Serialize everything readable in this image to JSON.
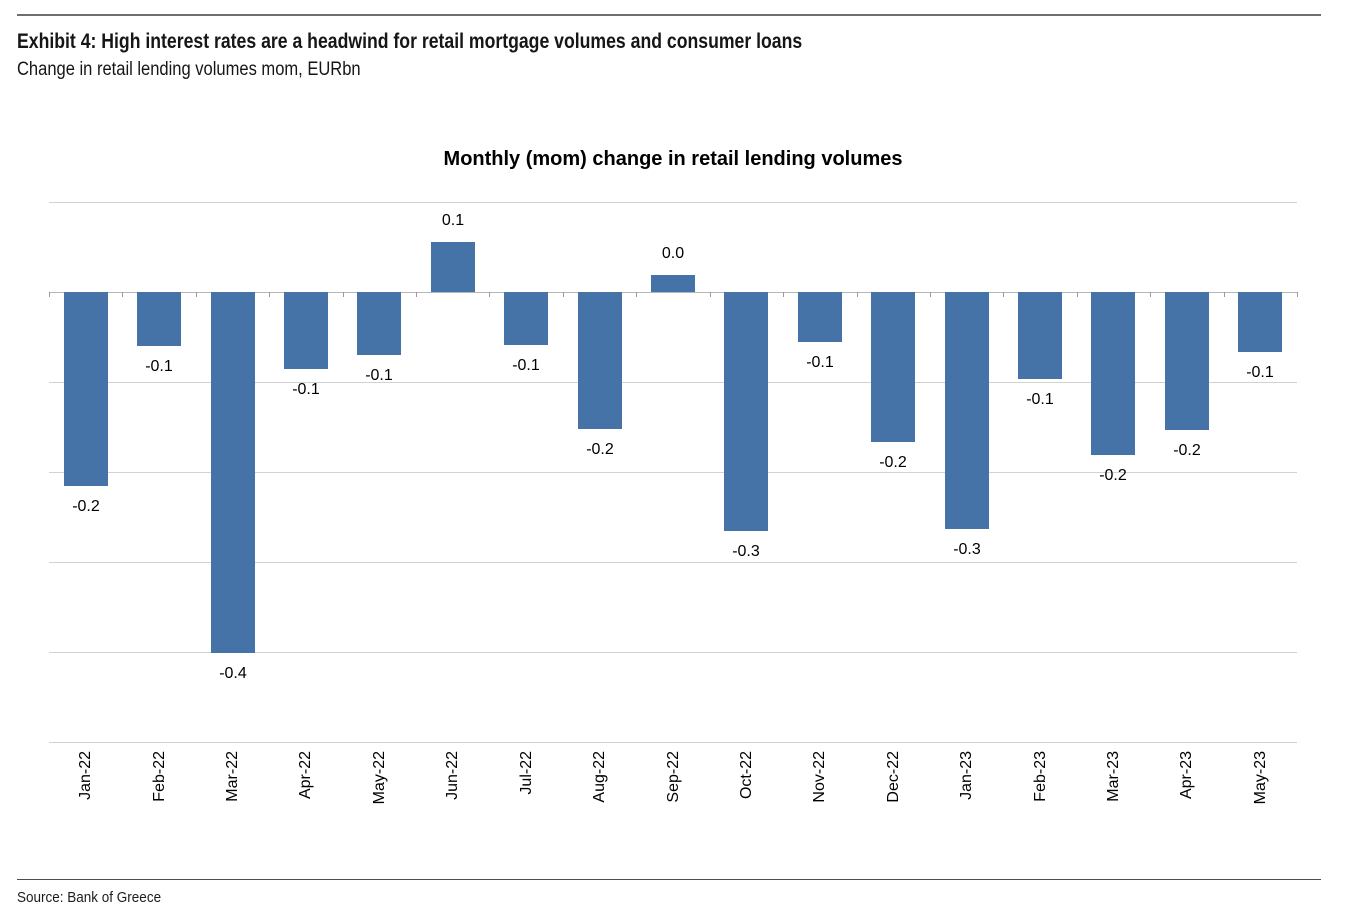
{
  "header": {
    "exhibit_title": "Exhibit 4: High interest rates are a headwind for retail mortgage volumes and consumer loans",
    "subtitle": "Change in retail lending volumes mom, EURbn"
  },
  "footer": {
    "source": "Source: Bank of Greece"
  },
  "chart_data": {
    "type": "bar",
    "title": "Monthly (mom) change in retail lending volumes",
    "categories": [
      "Jan-22",
      "Feb-22",
      "Mar-22",
      "Apr-22",
      "May-22",
      "Jun-22",
      "Jul-22",
      "Aug-22",
      "Sep-22",
      "Oct-22",
      "Nov-22",
      "Dec-22",
      "Jan-23",
      "Feb-23",
      "Mar-23",
      "Apr-23",
      "May-23"
    ],
    "values": [
      -0.215,
      -0.06,
      -0.401,
      -0.085,
      -0.07,
      0.056,
      -0.059,
      -0.152,
      0.019,
      -0.266,
      -0.056,
      -0.167,
      -0.263,
      -0.097,
      -0.181,
      -0.153,
      -0.067
    ],
    "point_labels": [
      "-0.2",
      "-0.1",
      "-0.4",
      "-0.1",
      "-0.1",
      "0.1",
      "-0.1",
      "-0.2",
      "0.0",
      "-0.3",
      "-0.1",
      "-0.2",
      "-0.3",
      "-0.1",
      "-0.2",
      "-0.2",
      "-0.1"
    ],
    "xlabel": "",
    "ylabel": "",
    "ylim": [
      -0.5,
      0.1
    ],
    "grid_step": 0.1,
    "y_axis_tick_labels": "none",
    "legend": "none",
    "grid": "on",
    "bar_color": "#4573a7",
    "grid_color": "#d2d2d2",
    "zero_axis_color": "#b7b7b7",
    "tick_color": "#9b9b9b"
  }
}
